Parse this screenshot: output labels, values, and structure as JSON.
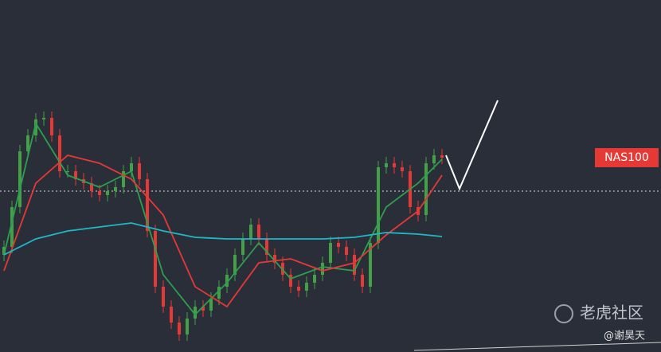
{
  "chart_data": {
    "type": "candlestick",
    "background": "#2a2e39",
    "ylim": [
      0,
      442
    ],
    "open": [
      122,
      132,
      182,
      252,
      272,
      292,
      294,
      272,
      227,
      227,
      217,
      212,
      202,
      197,
      202,
      207,
      227,
      237,
      217,
      152,
      82,
      57,
      37,
      22,
      42,
      57,
      52,
      67,
      82,
      97,
      122,
      142,
      160,
      142,
      122,
      112,
      97,
      82,
      77,
      87,
      97,
      112,
      137,
      132,
      122,
      97,
      82,
      137,
      232,
      237,
      232,
      227,
      182,
      172,
      237,
      247
    ],
    "high": [
      140,
      190,
      260,
      280,
      300,
      302,
      302,
      280,
      235,
      235,
      225,
      220,
      210,
      210,
      215,
      235,
      245,
      245,
      225,
      160,
      90,
      65,
      45,
      50,
      65,
      65,
      75,
      90,
      105,
      130,
      150,
      168,
      168,
      150,
      130,
      120,
      105,
      90,
      95,
      105,
      120,
      145,
      145,
      140,
      130,
      105,
      145,
      240,
      245,
      245,
      240,
      235,
      190,
      245,
      255,
      255
    ],
    "low": [
      114,
      124,
      174,
      244,
      264,
      284,
      264,
      219,
      219,
      209,
      204,
      194,
      189,
      189,
      194,
      199,
      219,
      209,
      144,
      74,
      49,
      29,
      14,
      14,
      34,
      44,
      44,
      59,
      74,
      89,
      114,
      134,
      134,
      114,
      104,
      89,
      74,
      69,
      69,
      79,
      89,
      104,
      124,
      114,
      89,
      74,
      74,
      129,
      224,
      224,
      219,
      174,
      164,
      164,
      229,
      236
    ],
    "close": [
      132,
      182,
      252,
      272,
      292,
      294,
      272,
      227,
      227,
      217,
      212,
      202,
      197,
      202,
      207,
      227,
      237,
      217,
      152,
      82,
      57,
      37,
      22,
      42,
      57,
      52,
      67,
      82,
      97,
      122,
      142,
      160,
      142,
      122,
      112,
      97,
      82,
      77,
      87,
      97,
      112,
      137,
      132,
      122,
      97,
      82,
      137,
      232,
      237,
      232,
      227,
      182,
      172,
      237,
      247,
      244
    ],
    "up_color": "#43a047",
    "down_color": "#e53935",
    "moving_averages": [
      {
        "color": "#2e9e4f",
        "x": [
          0,
          4,
          8,
          12,
          16,
          20,
          24,
          28,
          32,
          36,
          40,
          44,
          48,
          52,
          55
        ],
        "values": [
          122,
          287,
          222,
          207,
          227,
          97,
          47,
          87,
          137,
          92,
          107,
          102,
          182,
          212,
          242
        ]
      },
      {
        "color": "#e53935",
        "x": [
          0,
          4,
          8,
          12,
          16,
          20,
          24,
          28,
          32,
          36,
          40,
          44,
          48,
          52,
          55
        ],
        "values": [
          102,
          212,
          247,
          237,
          217,
          172,
          82,
          57,
          112,
          117,
          102,
          112,
          147,
          177,
          222
        ]
      },
      {
        "color": "#1fb8c9",
        "x": [
          0,
          4,
          8,
          12,
          16,
          20,
          24,
          28,
          32,
          36,
          40,
          44,
          48,
          52,
          55
        ],
        "values": [
          122,
          142,
          152,
          157,
          162,
          152,
          144,
          142,
          142,
          142,
          142,
          144,
          150,
          148,
          145
        ]
      }
    ],
    "price_line": 202,
    "symbol_label": "NAS100",
    "symbol_label_level": 244,
    "watermark": "老虎社区",
    "author": "@谢昊天"
  }
}
